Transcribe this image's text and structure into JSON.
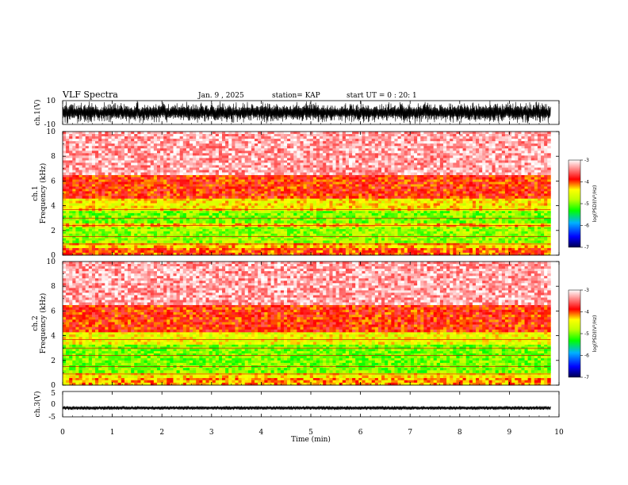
{
  "header": {
    "title": "VLF Spectra",
    "date": "Jan. 9 , 2025",
    "station": "station= KAP",
    "start": "start UT =  0 : 20: 1"
  },
  "chart_data": [
    {
      "type": "line",
      "name": "ch1-waveform",
      "ylabel": "ch.1(V)",
      "ylim": [
        -10,
        10
      ],
      "yticks": [
        "10",
        "-10"
      ],
      "x_range_min": [
        0,
        9.83
      ],
      "amplitude_range_V": [
        -10,
        10
      ]
    },
    {
      "type": "heatmap",
      "name": "ch1-spectrogram",
      "ylabel": "Frequency (kHz)",
      "channel_label": "ch.1",
      "ylim": [
        0,
        10
      ],
      "yticks": [
        "0",
        "2",
        "4",
        "6",
        "8",
        "10"
      ],
      "xlim": [
        0,
        9.83
      ],
      "colorbar": {
        "label": "log(PSD)(V²/Hz)",
        "ticks": [
          "-3",
          "-4",
          "-5",
          "-6",
          "-7"
        ],
        "range": [
          -7,
          -3
        ]
      },
      "bands_kHz": [
        {
          "from": 0,
          "to": 0.6,
          "level": -4.0
        },
        {
          "from": 0.6,
          "to": 1.0,
          "level": -4.3
        },
        {
          "from": 1.0,
          "to": 2.3,
          "level": -4.9
        },
        {
          "from": 2.3,
          "to": 2.6,
          "level": -4.3
        },
        {
          "from": 2.6,
          "to": 3.6,
          "level": -5.0
        },
        {
          "from": 3.6,
          "to": 4.6,
          "level": -4.4
        },
        {
          "from": 4.6,
          "to": 6.5,
          "level": -3.9
        },
        {
          "from": 6.5,
          "to": 10,
          "level": -3.3
        }
      ]
    },
    {
      "type": "heatmap",
      "name": "ch2-spectrogram",
      "ylabel": "Frequency (kHz)",
      "channel_label": "ch.2",
      "ylim": [
        0,
        10
      ],
      "yticks": [
        "0",
        "2",
        "4",
        "6",
        "8",
        "10"
      ],
      "xlim": [
        0,
        9.83
      ],
      "colorbar": {
        "label": "log(PSD)(V²/Hz)",
        "ticks": [
          "-3",
          "-4",
          "-5",
          "-6",
          "-7"
        ],
        "range": [
          -7,
          -3
        ]
      },
      "bands_kHz": [
        {
          "from": 0,
          "to": 0.6,
          "level": -4.2
        },
        {
          "from": 0.6,
          "to": 1.0,
          "level": -4.4
        },
        {
          "from": 1.0,
          "to": 2.2,
          "level": -5.0
        },
        {
          "from": 2.2,
          "to": 3.3,
          "level": -5.0
        },
        {
          "from": 3.3,
          "to": 4.3,
          "level": -4.5
        },
        {
          "from": 4.3,
          "to": 6.5,
          "level": -3.9
        },
        {
          "from": 6.5,
          "to": 10,
          "level": -3.3
        }
      ]
    },
    {
      "type": "line",
      "name": "ch3-waveform",
      "ylabel": "ch.3(V)",
      "ylim": [
        -5,
        5
      ],
      "yticks": [
        "5",
        "0",
        "-5"
      ],
      "x_range_min": [
        0,
        9.83
      ],
      "level_V": -1.5
    }
  ],
  "xaxis": {
    "label": "Time (min)",
    "ticks": [
      "0",
      "1",
      "2",
      "3",
      "4",
      "5",
      "6",
      "7",
      "8",
      "9",
      "10"
    ],
    "range": [
      0,
      10
    ]
  }
}
